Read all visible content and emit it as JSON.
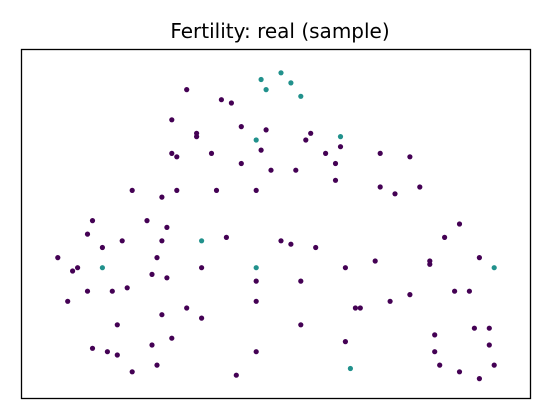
{
  "chart_data": {
    "type": "scatter",
    "title": "Fertility: real (sample)",
    "xlabel": "",
    "ylabel": "",
    "axes_ticks": "none",
    "grid": false,
    "legend": "none",
    "xlim": [
      0,
      100
    ],
    "ylim": [
      0,
      100
    ],
    "colors": {
      "class_0": "#440154",
      "class_1": "#21918c"
    },
    "series": [
      {
        "values": [
          [
            6,
            40
          ],
          [
            8,
            27
          ],
          [
            9,
            36
          ],
          [
            10,
            37
          ],
          [
            12,
            30
          ],
          [
            12,
            47
          ],
          [
            13,
            51
          ],
          [
            13,
            13
          ],
          [
            15,
            43
          ],
          [
            16,
            12
          ],
          [
            17,
            30
          ],
          [
            18,
            20
          ],
          [
            18,
            11
          ],
          [
            19,
            45
          ],
          [
            20,
            31
          ],
          [
            21,
            60
          ],
          [
            21,
            6
          ],
          [
            24,
            51
          ],
          [
            25,
            35
          ],
          [
            25,
            14
          ],
          [
            26,
            40
          ],
          [
            26,
            8
          ],
          [
            27,
            58
          ],
          [
            27,
            45
          ],
          [
            27,
            23
          ],
          [
            28,
            49
          ],
          [
            28,
            34
          ],
          [
            29,
            16
          ],
          [
            29,
            81
          ],
          [
            29,
            71
          ],
          [
            30,
            60
          ],
          [
            30,
            70
          ],
          [
            32,
            25
          ],
          [
            32,
            90
          ],
          [
            34,
            77
          ],
          [
            34,
            76
          ],
          [
            35,
            22
          ],
          [
            35,
            37
          ],
          [
            37,
            71
          ],
          [
            38,
            60
          ],
          [
            39,
            87
          ],
          [
            40,
            46
          ],
          [
            41,
            86
          ],
          [
            42,
            5
          ],
          [
            43,
            79
          ],
          [
            43,
            68
          ],
          [
            46,
            27
          ],
          [
            46,
            33
          ],
          [
            46,
            60
          ],
          [
            46,
            12
          ],
          [
            47,
            72
          ],
          [
            48,
            78
          ],
          [
            49,
            66
          ],
          [
            51,
            45
          ],
          [
            53,
            44
          ],
          [
            54,
            66
          ],
          [
            55,
            33
          ],
          [
            55,
            20
          ],
          [
            56,
            75
          ],
          [
            57,
            77
          ],
          [
            58,
            43
          ],
          [
            60,
            71
          ],
          [
            62,
            63
          ],
          [
            62,
            68
          ],
          [
            63,
            73
          ],
          [
            64,
            15
          ],
          [
            64,
            37
          ],
          [
            66,
            25
          ],
          [
            67,
            25
          ],
          [
            70,
            39
          ],
          [
            71,
            71
          ],
          [
            71,
            61
          ],
          [
            73,
            27
          ],
          [
            74,
            59
          ],
          [
            77,
            70
          ],
          [
            77,
            29
          ],
          [
            79,
            61
          ],
          [
            81,
            38
          ],
          [
            81,
            39
          ],
          [
            82,
            17
          ],
          [
            82,
            12
          ],
          [
            83,
            8
          ],
          [
            84,
            46
          ],
          [
            86,
            30
          ],
          [
            87,
            50
          ],
          [
            87,
            6
          ],
          [
            89,
            30
          ],
          [
            90,
            19
          ],
          [
            91,
            4
          ],
          [
            91,
            40
          ],
          [
            93,
            19
          ],
          [
            93,
            14
          ],
          [
            94,
            8
          ]
        ]
      },
      {
        "values": [
          [
            15,
            37
          ],
          [
            35,
            45
          ],
          [
            46,
            37
          ],
          [
            46,
            75
          ],
          [
            47,
            93
          ],
          [
            48,
            90
          ],
          [
            51,
            95
          ],
          [
            53,
            92
          ],
          [
            55,
            88
          ],
          [
            63,
            76
          ],
          [
            65,
            7
          ],
          [
            94,
            37
          ]
        ]
      }
    ]
  }
}
